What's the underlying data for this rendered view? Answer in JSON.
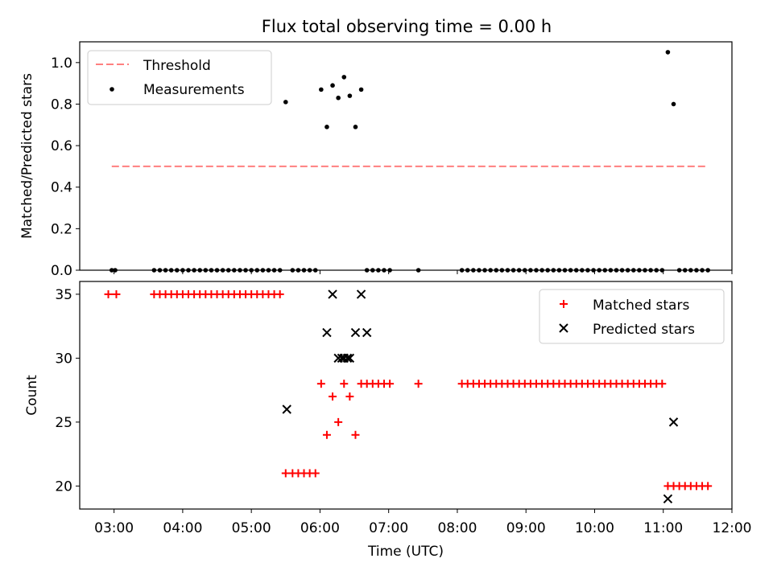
{
  "title": "Flux total observing time = 0.00 h",
  "chart_data": [
    {
      "type": "scatter",
      "ylabel": "Matched/Predicted stars",
      "ylim": [
        0,
        1.1
      ],
      "yticks": [
        "0.0",
        "0.2",
        "0.4",
        "0.6",
        "0.8",
        "1.0"
      ],
      "legend": {
        "position": "upper left",
        "entries": [
          "Threshold",
          "Measurements"
        ]
      },
      "threshold": {
        "name": "Threshold",
        "value": 0.5,
        "x_start": "02:58",
        "x_end": "11:38",
        "color": "#ff7f7f"
      },
      "series": [
        {
          "name": "Measurements",
          "marker": "dot",
          "color": "#000000",
          "x": [
            "02:58",
            "03:01",
            "03:35",
            "03:40",
            "03:45",
            "03:50",
            "03:55",
            "04:00",
            "04:05",
            "04:10",
            "04:15",
            "04:20",
            "04:25",
            "04:30",
            "04:35",
            "04:40",
            "04:45",
            "04:50",
            "04:55",
            "05:00",
            "05:05",
            "05:10",
            "05:15",
            "05:20",
            "05:25",
            "05:30",
            "05:36",
            "05:41",
            "05:46",
            "05:51",
            "05:56",
            "06:01",
            "06:06",
            "06:11",
            "06:16",
            "06:21",
            "06:26",
            "06:31",
            "06:36",
            "06:41",
            "06:46",
            "06:51",
            "06:56",
            "07:01",
            "07:26",
            "08:04",
            "08:09",
            "08:14",
            "08:19",
            "08:24",
            "08:29",
            "08:34",
            "08:39",
            "08:44",
            "08:49",
            "08:54",
            "08:59",
            "09:04",
            "09:09",
            "09:14",
            "09:19",
            "09:24",
            "09:29",
            "09:34",
            "09:39",
            "09:44",
            "09:49",
            "09:54",
            "09:59",
            "10:04",
            "10:09",
            "10:14",
            "10:19",
            "10:24",
            "10:29",
            "10:34",
            "10:39",
            "10:44",
            "10:49",
            "10:54",
            "10:59",
            "11:04",
            "11:09",
            "11:14",
            "11:19",
            "11:24",
            "11:29",
            "11:34",
            "11:39"
          ],
          "y": [
            0,
            0,
            0,
            0,
            0,
            0,
            0,
            0,
            0,
            0,
            0,
            0,
            0,
            0,
            0,
            0,
            0,
            0,
            0,
            0,
            0,
            0,
            0,
            0,
            0,
            0.81,
            0,
            0,
            0,
            0,
            0,
            0.87,
            0.69,
            0.89,
            0.83,
            0.93,
            0.84,
            0.69,
            0.87,
            0,
            0,
            0,
            0,
            0,
            0,
            0,
            0,
            0,
            0,
            0,
            0,
            0,
            0,
            0,
            0,
            0,
            0,
            0,
            0,
            0,
            0,
            0,
            0,
            0,
            0,
            0,
            0,
            0,
            0,
            0,
            0,
            0,
            0,
            0,
            0,
            0,
            0,
            0,
            0,
            0,
            0,
            1.05,
            0.8,
            0,
            0,
            0,
            0,
            0,
            0
          ]
        }
      ]
    },
    {
      "type": "scatter",
      "xlabel": "Time (UTC)",
      "ylabel": "Count",
      "ylim": [
        18.2,
        36
      ],
      "yticks": [
        20,
        25,
        30,
        35
      ],
      "xticks": [
        "03:00",
        "04:00",
        "05:00",
        "06:00",
        "07:00",
        "08:00",
        "09:00",
        "10:00",
        "11:00",
        "12:00"
      ],
      "xlim": [
        "02:30",
        "12:00"
      ],
      "legend": {
        "position": "upper right",
        "entries": [
          "Matched stars",
          "Predicted stars"
        ]
      },
      "series": [
        {
          "name": "Matched stars",
          "marker": "plus",
          "color": "#ff0000",
          "x": [
            "02:55",
            "03:02",
            "03:35",
            "03:40",
            "03:45",
            "03:50",
            "03:55",
            "04:00",
            "04:05",
            "04:10",
            "04:15",
            "04:20",
            "04:25",
            "04:30",
            "04:35",
            "04:40",
            "04:45",
            "04:50",
            "04:55",
            "05:00",
            "05:05",
            "05:10",
            "05:15",
            "05:20",
            "05:25",
            "05:30",
            "05:36",
            "05:41",
            "05:46",
            "05:51",
            "05:56",
            "06:01",
            "06:06",
            "06:11",
            "06:16",
            "06:21",
            "06:26",
            "06:31",
            "06:36",
            "06:41",
            "06:46",
            "06:51",
            "06:56",
            "07:01",
            "07:26",
            "08:04",
            "08:09",
            "08:14",
            "08:19",
            "08:24",
            "08:29",
            "08:34",
            "08:39",
            "08:44",
            "08:49",
            "08:54",
            "08:59",
            "09:04",
            "09:09",
            "09:14",
            "09:19",
            "09:24",
            "09:29",
            "09:34",
            "09:39",
            "09:44",
            "09:49",
            "09:54",
            "09:59",
            "10:04",
            "10:09",
            "10:14",
            "10:19",
            "10:24",
            "10:29",
            "10:34",
            "10:39",
            "10:44",
            "10:49",
            "10:54",
            "10:59",
            "11:04",
            "11:09",
            "11:14",
            "11:19",
            "11:24",
            "11:29",
            "11:34",
            "11:39"
          ],
          "y": [
            35,
            35,
            35,
            35,
            35,
            35,
            35,
            35,
            35,
            35,
            35,
            35,
            35,
            35,
            35,
            35,
            35,
            35,
            35,
            35,
            35,
            35,
            35,
            35,
            35,
            21,
            21,
            21,
            21,
            21,
            21,
            28,
            24,
            27,
            25,
            28,
            27,
            24,
            28,
            28,
            28,
            28,
            28,
            28,
            28,
            28,
            28,
            28,
            28,
            28,
            28,
            28,
            28,
            28,
            28,
            28,
            28,
            28,
            28,
            28,
            28,
            28,
            28,
            28,
            28,
            28,
            28,
            28,
            28,
            28,
            28,
            28,
            28,
            28,
            28,
            28,
            28,
            28,
            28,
            28,
            28,
            20,
            20,
            20,
            20,
            20,
            20,
            20,
            20
          ]
        },
        {
          "name": "Predicted stars",
          "marker": "x",
          "color": "#000000",
          "x": [
            "05:31",
            "06:06",
            "06:11",
            "06:16",
            "06:19",
            "06:21",
            "06:24",
            "06:26",
            "06:31",
            "06:36",
            "06:41",
            "11:04",
            "11:09"
          ],
          "y": [
            26,
            32,
            35,
            30,
            30,
            30,
            30,
            30,
            32,
            35,
            32,
            19,
            25
          ]
        }
      ]
    }
  ]
}
